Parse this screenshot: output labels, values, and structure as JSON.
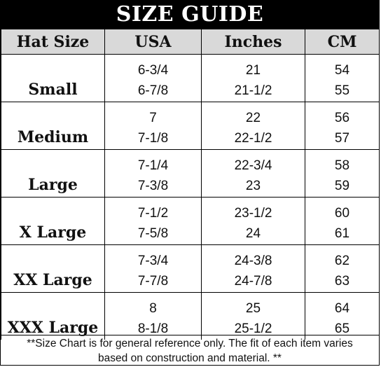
{
  "title": "SIZE GUIDE",
  "headers": [
    "Hat Size",
    "USA",
    "Inches",
    "CM"
  ],
  "rows": [
    {
      "label": "Small",
      "usa": [
        "6-3/4",
        "6-7/8"
      ],
      "inches": [
        "21",
        "21-1/2"
      ],
      "cm": [
        "54",
        "55"
      ]
    },
    {
      "label": "Medium",
      "usa": [
        "7",
        "7-1/8"
      ],
      "inches": [
        "22",
        "22-1/2"
      ],
      "cm": [
        "56",
        "57"
      ]
    },
    {
      "label": "Large",
      "usa": [
        "7-1/4",
        "7-3/8"
      ],
      "inches": [
        "22-3/4",
        "23"
      ],
      "cm": [
        "58",
        "59"
      ]
    },
    {
      "label": "X Large",
      "usa": [
        "7-1/2",
        "7-5/8"
      ],
      "inches": [
        "23-1/2",
        "24"
      ],
      "cm": [
        "60",
        "61"
      ]
    },
    {
      "label": "XX Large",
      "usa": [
        "7-3/4",
        "7-7/8"
      ],
      "inches": [
        "24-3/8",
        "24-7/8"
      ],
      "cm": [
        "62",
        "63"
      ]
    },
    {
      "label": "XXX Large",
      "usa": [
        "8",
        "8-1/8"
      ],
      "inches": [
        "25",
        "25-1/2"
      ],
      "cm": [
        "64",
        "65"
      ]
    }
  ],
  "footnote": {
    "line1": "**Size Chart is for general reference only. The fit of each item varies",
    "line2": "based on construction and material. **"
  },
  "colors": {
    "title_bg": "#000000",
    "title_text": "#ffffff",
    "header_bg": "#d9d9d9",
    "border": "#000000"
  }
}
